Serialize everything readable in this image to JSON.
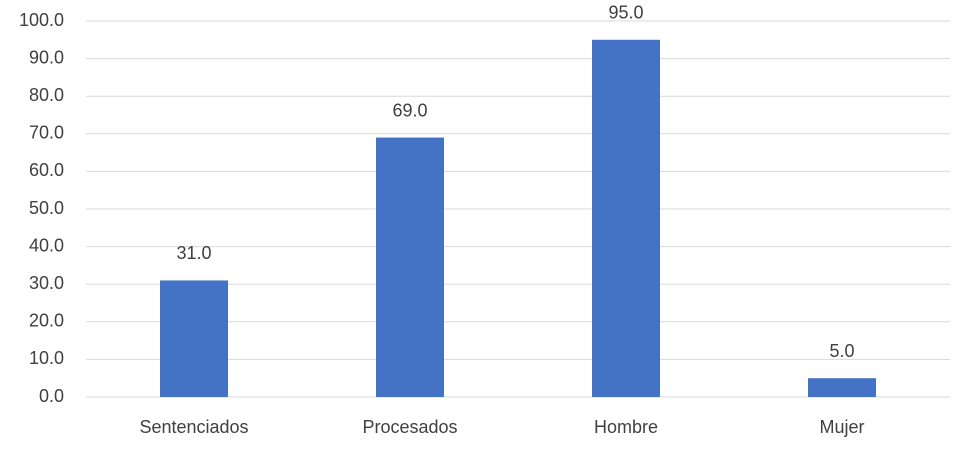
{
  "chart_data": {
    "type": "bar",
    "categories": [
      "Sentenciados",
      "Procesados",
      "Hombre",
      "Mujer"
    ],
    "values": [
      31,
      69,
      95,
      5
    ],
    "value_labels": [
      "31.0",
      "69.0",
      "95.0",
      "5.0"
    ],
    "color": "#4472c4",
    "ylim": [
      0,
      100
    ],
    "yticks": [
      {
        "value": 0,
        "label": "0.0"
      },
      {
        "value": 10,
        "label": "10.0"
      },
      {
        "value": 20,
        "label": "20.0"
      },
      {
        "value": 30,
        "label": "30.0"
      },
      {
        "value": 40,
        "label": "40.0"
      },
      {
        "value": 50,
        "label": "50.0"
      },
      {
        "value": 60,
        "label": "60.0"
      },
      {
        "value": 70,
        "label": "70.0"
      },
      {
        "value": 80,
        "label": "80.0"
      },
      {
        "value": 90,
        "label": "90.0"
      },
      {
        "value": 100,
        "label": "100.0"
      }
    ],
    "grid": true
  }
}
